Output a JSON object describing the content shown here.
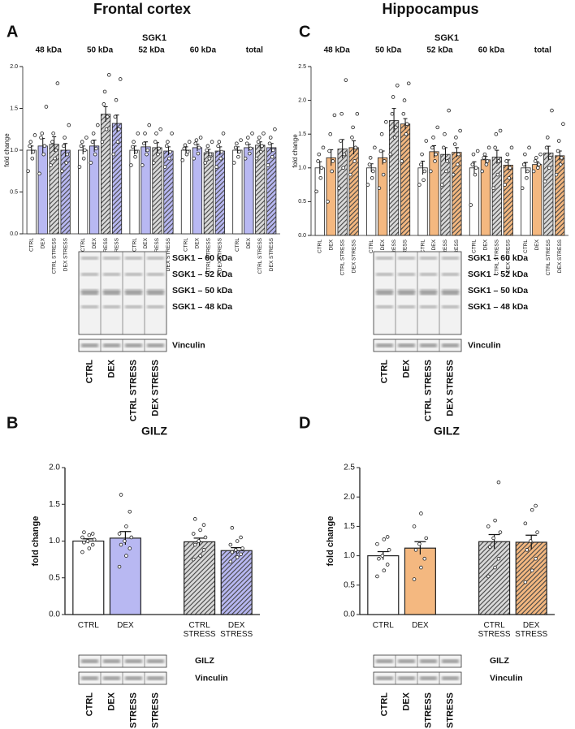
{
  "columns": [
    "Frontal cortex",
    "Hippocampus"
  ],
  "chart_data": [
    {
      "type": "bar",
      "panel": "A",
      "title": "SGK1",
      "ylabel": "fold change",
      "categories": [
        "48 kDa",
        "50 kDa",
        "52 kDa",
        "60 kDa",
        "total"
      ],
      "ylim": [
        0,
        2
      ],
      "yticks": [
        {
          "value": 0,
          "label": "0.0"
        },
        {
          "value": 0.5,
          "label": "0.5"
        },
        {
          "value": 1,
          "label": "1.0"
        },
        {
          "value": 1.5,
          "label": "1.5"
        },
        {
          "value": 2,
          "label": "2.0"
        }
      ],
      "series": [
        {
          "name": "CTRL",
          "color": "#ffffff",
          "hatch": false,
          "values": [
            1.0,
            1.0,
            1.0,
            1.0,
            1.0
          ],
          "errors": [
            0.05,
            0.05,
            0.05,
            0.04,
            0.04
          ],
          "points": [
            [
              0.75,
              0.9,
              0.98,
              1.05,
              1.1,
              1.18
            ],
            [
              0.8,
              0.9,
              1.0,
              1.05,
              1.1,
              1.15
            ],
            [
              0.82,
              0.92,
              0.98,
              1.04,
              1.1,
              1.2
            ],
            [
              0.88,
              0.95,
              0.98,
              1.02,
              1.06,
              1.1
            ],
            [
              0.85,
              0.92,
              0.98,
              1.03,
              1.08,
              1.12
            ]
          ]
        },
        {
          "name": "DEX",
          "color": "#b8b8f2",
          "hatch": false,
          "values": [
            1.05,
            1.05,
            1.04,
            1.03,
            1.03
          ],
          "errors": [
            0.09,
            0.07,
            0.06,
            0.04,
            0.04
          ],
          "points": [
            [
              0.72,
              0.95,
              1.05,
              1.15,
              1.2,
              1.52
            ],
            [
              0.85,
              0.95,
              1.02,
              1.1,
              1.2,
              1.3
            ],
            [
              0.82,
              0.95,
              1.0,
              1.08,
              1.2,
              1.3
            ],
            [
              0.9,
              0.96,
              1.03,
              1.08,
              1.12,
              1.15
            ],
            [
              0.9,
              0.96,
              1.02,
              1.08,
              1.15,
              1.2
            ]
          ]
        },
        {
          "name": "CTRL STRESS",
          "color": "#d9d9d9",
          "hatch": true,
          "values": [
            1.07,
            1.43,
            1.03,
            0.97,
            1.06
          ],
          "errors": [
            0.09,
            0.09,
            0.06,
            0.04,
            0.04
          ],
          "points": [
            [
              0.82,
              0.9,
              1.0,
              1.1,
              1.2,
              1.8
            ],
            [
              1.1,
              1.25,
              1.4,
              1.55,
              1.7,
              1.9
            ],
            [
              0.85,
              0.95,
              1.02,
              1.1,
              1.2,
              1.25
            ],
            [
              0.85,
              0.9,
              0.95,
              1.0,
              1.05,
              1.1
            ],
            [
              0.9,
              0.98,
              1.05,
              1.1,
              1.15,
              1.2
            ]
          ]
        },
        {
          "name": "DEX STRESS",
          "color": "#b8b8f2",
          "hatch": true,
          "values": [
            1.0,
            1.32,
            0.99,
            0.99,
            1.03
          ],
          "errors": [
            0.08,
            0.1,
            0.05,
            0.05,
            0.05
          ],
          "points": [
            [
              0.75,
              0.85,
              0.95,
              1.05,
              1.15,
              1.3
            ],
            [
              0.95,
              1.1,
              1.25,
              1.4,
              1.6,
              1.85
            ],
            [
              0.8,
              0.9,
              0.98,
              1.05,
              1.1,
              1.2
            ],
            [
              0.8,
              0.9,
              0.98,
              1.05,
              1.1,
              1.2
            ],
            [
              0.82,
              0.92,
              1.0,
              1.08,
              1.15,
              1.25
            ]
          ]
        }
      ]
    },
    {
      "type": "bar",
      "panel": "C",
      "title": "SGK1",
      "ylabel": "fold change",
      "categories": [
        "48 kDa",
        "50 kDa",
        "52 kDa",
        "60 kDa",
        "total"
      ],
      "ylim": [
        0,
        2.5
      ],
      "yticks": [
        {
          "value": 0,
          "label": "0.0"
        },
        {
          "value": 0.5,
          "label": "0.5"
        },
        {
          "value": 1,
          "label": "1.0"
        },
        {
          "value": 1.5,
          "label": "1.5"
        },
        {
          "value": 2,
          "label": "2.0"
        },
        {
          "value": 2.5,
          "label": "2.5"
        }
      ],
      "series": [
        {
          "name": "CTRL",
          "color": "#ffffff",
          "hatch": false,
          "values": [
            1.0,
            1.0,
            1.0,
            1.0,
            1.0
          ],
          "errors": [
            0.09,
            0.06,
            0.1,
            0.09,
            0.08
          ],
          "points": [
            [
              0.65,
              0.85,
              1.0,
              1.1,
              1.2,
              1.3
            ],
            [
              0.75,
              0.85,
              0.95,
              1.05,
              1.15,
              1.3
            ],
            [
              0.75,
              0.82,
              0.95,
              1.05,
              1.2,
              1.4
            ],
            [
              0.45,
              0.9,
              1.0,
              1.05,
              1.2,
              1.25
            ],
            [
              0.7,
              0.85,
              0.95,
              1.05,
              1.2,
              1.3
            ]
          ]
        },
        {
          "name": "DEX",
          "color": "#f4b880",
          "hatch": false,
          "values": [
            1.15,
            1.15,
            1.24,
            1.12,
            1.05
          ],
          "errors": [
            0.12,
            0.1,
            0.09,
            0.05,
            0.04
          ],
          "points": [
            [
              0.5,
              0.95,
              1.1,
              1.25,
              1.5,
              1.78
            ],
            [
              0.7,
              0.9,
              1.1,
              1.25,
              1.5,
              1.68
            ],
            [
              0.95,
              1.1,
              1.2,
              1.3,
              1.45,
              1.6
            ],
            [
              0.95,
              1.05,
              1.1,
              1.15,
              1.2,
              1.3
            ],
            [
              0.95,
              1.0,
              1.05,
              1.1,
              1.15,
              1.2
            ]
          ]
        },
        {
          "name": "CTRL STRESS",
          "color": "#d9d9d9",
          "hatch": true,
          "values": [
            1.28,
            1.7,
            1.2,
            1.16,
            1.22
          ],
          "errors": [
            0.14,
            0.18,
            0.1,
            0.1,
            0.1
          ],
          "points": [
            [
              0.7,
              1.0,
              1.2,
              1.4,
              1.8,
              2.3
            ],
            [
              1.2,
              1.45,
              1.6,
              1.8,
              2.05,
              2.22
            ],
            [
              0.75,
              0.95,
              1.1,
              1.3,
              1.5,
              1.85
            ],
            [
              0.7,
              0.9,
              1.1,
              1.3,
              1.5,
              1.55
            ],
            [
              0.8,
              1.0,
              1.15,
              1.3,
              1.45,
              1.85
            ]
          ]
        },
        {
          "name": "DEX STRESS",
          "color": "#f4b880",
          "hatch": true,
          "values": [
            1.3,
            1.65,
            1.23,
            1.04,
            1.18
          ],
          "errors": [
            0.1,
            0.08,
            0.07,
            0.08,
            0.07
          ],
          "points": [
            [
              0.9,
              1.1,
              1.3,
              1.45,
              1.6,
              1.8
            ],
            [
              1.1,
              1.5,
              1.65,
              1.8,
              2.0,
              2.25
            ],
            [
              0.9,
              1.05,
              1.2,
              1.35,
              1.45,
              1.55
            ],
            [
              0.75,
              0.85,
              1.0,
              1.1,
              1.2,
              1.3
            ],
            [
              0.9,
              1.05,
              1.15,
              1.25,
              1.4,
              1.65
            ]
          ]
        }
      ]
    },
    {
      "type": "bar",
      "panel": "B",
      "title": "GILZ",
      "ylabel": "fold change",
      "categories": [
        "CTRL",
        "DEX",
        "CTRL STRESS",
        "DEX STRESS"
      ],
      "colors": [
        "#ffffff",
        "#b8b8f2",
        "#d9d9d9",
        "#b8b8f2"
      ],
      "hatch": [
        false,
        false,
        true,
        true
      ],
      "values": [
        1.0,
        1.04,
        0.99,
        0.87
      ],
      "errors": [
        0.03,
        0.09,
        0.05,
        0.04
      ],
      "points": [
        [
          0.85,
          0.9,
          0.95,
          0.98,
          1.0,
          1.02,
          1.05,
          1.08,
          1.1,
          1.12
        ],
        [
          0.65,
          0.8,
          0.9,
          0.95,
          1.0,
          1.05,
          1.1,
          1.2,
          1.4,
          1.63
        ],
        [
          0.75,
          0.8,
          0.88,
          0.95,
          1.0,
          1.05,
          1.1,
          1.15,
          1.22,
          1.3
        ],
        [
          0.72,
          0.78,
          0.82,
          0.85,
          0.88,
          0.9,
          0.95,
          1.0,
          1.05,
          1.18
        ]
      ],
      "ylim": [
        0,
        2
      ],
      "yticks": [
        {
          "value": 0,
          "label": "0.0"
        },
        {
          "value": 0.5,
          "label": "0.5"
        },
        {
          "value": 1,
          "label": "1.0"
        },
        {
          "value": 1.5,
          "label": "1.5"
        },
        {
          "value": 2,
          "label": "2.0"
        }
      ]
    },
    {
      "type": "bar",
      "panel": "D",
      "title": "GILZ",
      "ylabel": "fold change",
      "categories": [
        "CTRL",
        "DEX",
        "CTRL STRESS",
        "DEX STRESS"
      ],
      "colors": [
        "#ffffff",
        "#f4b880",
        "#d9d9d9",
        "#f4b880"
      ],
      "hatch": [
        false,
        false,
        true,
        true
      ],
      "values": [
        1.0,
        1.13,
        1.24,
        1.23
      ],
      "errors": [
        0.07,
        0.11,
        0.12,
        0.12
      ],
      "points": [
        [
          0.65,
          0.75,
          0.85,
          0.95,
          1.0,
          1.1,
          1.2,
          1.28,
          1.32
        ],
        [
          0.6,
          0.8,
          0.95,
          1.1,
          1.2,
          1.3,
          1.5,
          1.72
        ],
        [
          0.65,
          0.8,
          0.95,
          1.15,
          1.3,
          1.4,
          1.5,
          1.6,
          2.25
        ],
        [
          0.55,
          0.75,
          0.95,
          1.1,
          1.25,
          1.4,
          1.55,
          1.78,
          1.85
        ]
      ],
      "ylim": [
        0,
        2.5
      ],
      "yticks": [
        {
          "value": 0,
          "label": "0.0"
        },
        {
          "value": 0.5,
          "label": "0.5"
        },
        {
          "value": 1,
          "label": "1.0"
        },
        {
          "value": 1.5,
          "label": "1.5"
        },
        {
          "value": 2,
          "label": "2.0"
        },
        {
          "value": 2.5,
          "label": "2.5"
        }
      ]
    }
  ],
  "blots": [
    {
      "bands": [
        "SGK1 – 60 kDa",
        "SGK1 – 52 kDa",
        "SGK1 – 50 kDa",
        "SGK1 – 48 kDa"
      ],
      "loading": "Vinculin",
      "lanes": [
        "CTRL",
        "DEX",
        "CTRL STRESS",
        "DEX STRESS"
      ]
    },
    {
      "bands": [
        "SGK1 – 60 kDa",
        "SGK1 – 52 kDa",
        "SGK1 – 50 kDa",
        "SGK1 – 48 kDa"
      ],
      "loading": "Vinculin",
      "lanes": [
        "CTRL",
        "DEX",
        "CTRL STRESS",
        "DEX STRESS"
      ]
    },
    {
      "bands": [
        "GILZ"
      ],
      "loading": "Vinculin",
      "lanes": [
        "CTRL",
        "DEX",
        "CTRL STRESS",
        "DEX STRESS"
      ]
    },
    {
      "bands": [
        "GILZ"
      ],
      "loading": "Vinculin",
      "lanes": [
        "CTRL",
        "DEX",
        "CTRL STRESS",
        "DEX STRESS"
      ]
    }
  ]
}
